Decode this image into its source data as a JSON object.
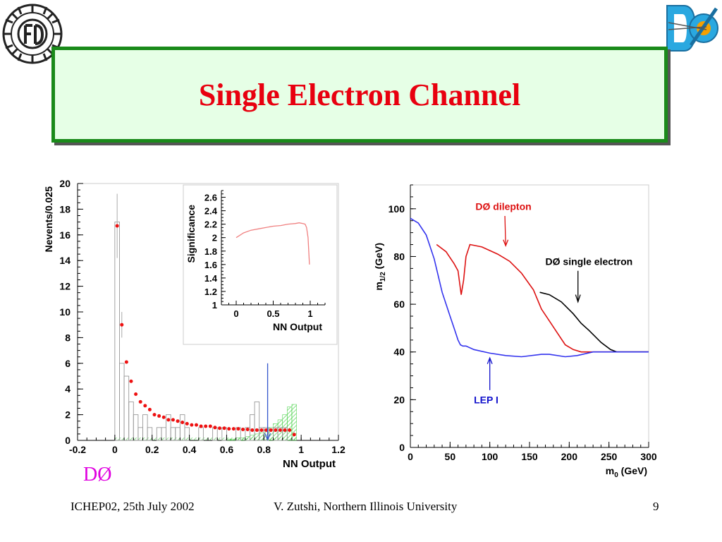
{
  "slide": {
    "title": "Single Electron Channel",
    "experiment_mark": "DØ",
    "footer_left": "ICHEP02, 25th July 2002",
    "footer_center": "V. Zutshi, Northern Illinois University",
    "page_number": "9",
    "colors": {
      "title": "#e8000f",
      "title_box_bg": "#e6ffe6",
      "title_box_border": "#1a8a1a",
      "d0_mark": "#e000e0"
    }
  },
  "chart_data": [
    {
      "type": "bar",
      "xlabel": "NN Output",
      "ylabel": "Nevents/0.025",
      "xlim": [
        -0.2,
        1.2
      ],
      "ylim": [
        0,
        20
      ],
      "xticks": [
        "-0.2",
        "0",
        "0.2",
        "0.4",
        "0.6",
        "0.8",
        "1",
        "1.2"
      ],
      "yticks": [
        "0",
        "2",
        "4",
        "6",
        "8",
        "10",
        "12",
        "14",
        "16",
        "18",
        "20"
      ],
      "grid": false,
      "cut_value": 0.82,
      "series": [
        {
          "kind": "data-hist",
          "color": "#999999",
          "x": [
            0.0125,
            0.0375,
            0.0625,
            0.0875,
            0.1125,
            0.1375,
            0.1625,
            0.1875,
            0.2125,
            0.2375,
            0.2625,
            0.2875,
            0.3125,
            0.3375,
            0.3625,
            0.3875,
            0.4125,
            0.4375,
            0.4625,
            0.4875,
            0.5125,
            0.5375,
            0.5625,
            0.5875,
            0.6125,
            0.6375,
            0.6625,
            0.6875,
            0.7125,
            0.7375,
            0.7625,
            0.7875,
            0.8125,
            0.8375,
            0.8625,
            0.8875,
            0.9125,
            0.9375,
            0.9625
          ],
          "values": [
            17,
            6,
            5,
            3,
            2,
            1,
            2,
            1,
            0,
            1,
            1,
            2,
            1,
            1,
            2,
            1,
            0,
            0,
            1,
            0,
            0,
            1,
            0,
            1,
            0,
            0,
            1,
            0,
            1,
            2,
            3,
            1,
            1,
            0,
            1,
            1,
            1,
            0,
            0
          ]
        },
        {
          "kind": "signal-hist",
          "color": "#33cc33",
          "x": [
            0.6125,
            0.6375,
            0.6625,
            0.6875,
            0.7125,
            0.7375,
            0.7625,
            0.7875,
            0.8125,
            0.8375,
            0.8625,
            0.8875,
            0.9125,
            0.9375,
            0.9625
          ],
          "values": [
            0.1,
            0.1,
            0.2,
            0.2,
            0.3,
            0.4,
            0.5,
            0.6,
            0.8,
            1.0,
            1.3,
            1.6,
            2.0,
            2.6,
            2.8
          ]
        },
        {
          "kind": "background-points",
          "color": "#ee1111",
          "x": [
            0.0125,
            0.0375,
            0.0625,
            0.0875,
            0.1125,
            0.1375,
            0.1625,
            0.1875,
            0.2125,
            0.2375,
            0.2625,
            0.2875,
            0.3125,
            0.3375,
            0.3625,
            0.3875,
            0.4125,
            0.4375,
            0.4625,
            0.4875,
            0.5125,
            0.5375,
            0.5625,
            0.5875,
            0.6125,
            0.6375,
            0.6625,
            0.6875,
            0.7125,
            0.7375,
            0.7625,
            0.7875,
            0.8125,
            0.8375,
            0.8625,
            0.8875,
            0.9125,
            0.9375,
            0.9625
          ],
          "values": [
            16.7,
            9.0,
            6.1,
            4.6,
            3.6,
            3.0,
            2.7,
            2.4,
            2.0,
            1.9,
            1.8,
            1.6,
            1.6,
            1.5,
            1.4,
            1.3,
            1.2,
            1.2,
            1.1,
            1.1,
            1.1,
            1.0,
            0.95,
            0.95,
            0.9,
            0.9,
            0.9,
            0.85,
            0.85,
            0.8,
            0.8,
            0.8,
            0.8,
            0.8,
            0.8,
            0.8,
            0.8,
            0.8,
            0.45
          ]
        }
      ],
      "inset": {
        "type": "line",
        "xlabel": "NN Output",
        "ylabel": "Significance",
        "xlim": [
          -0.2,
          1.2
        ],
        "ylim": [
          1,
          2.7
        ],
        "xticks": [
          "0",
          "0.5",
          "1"
        ],
        "yticks": [
          "1",
          "1.2",
          "1.4",
          "1.6",
          "1.8",
          "2",
          "2.2",
          "2.4",
          "2.6"
        ],
        "color": "#f08080",
        "x": [
          0.0,
          0.1,
          0.2,
          0.3,
          0.4,
          0.5,
          0.6,
          0.7,
          0.8,
          0.85,
          0.9,
          0.93,
          0.95,
          0.97,
          0.98,
          0.99
        ],
        "y": [
          2.0,
          2.07,
          2.11,
          2.13,
          2.15,
          2.17,
          2.18,
          2.2,
          2.21,
          2.22,
          2.21,
          2.2,
          2.15,
          2.0,
          1.8,
          1.6
        ]
      }
    },
    {
      "type": "line",
      "xlabel": "m0 (GeV)",
      "ylabel": "m1/2 (GeV)",
      "xlim": [
        0,
        300
      ],
      "ylim": [
        0,
        110
      ],
      "xticks": [
        "0",
        "50",
        "100",
        "150",
        "200",
        "250",
        "300"
      ],
      "yticks": [
        "0",
        "20",
        "40",
        "60",
        "80",
        "100"
      ],
      "grid": false,
      "annotations": [
        {
          "text": "DØ dilepton",
          "color": "#dd1111"
        },
        {
          "text": "DØ single electron",
          "color": "#000000"
        },
        {
          "text": "LEP I",
          "color": "#1111cc"
        }
      ],
      "series": [
        {
          "name": "DØ dilepton",
          "color": "#dd1111",
          "x": [
            33,
            45,
            55,
            60,
            64,
            67,
            70,
            75,
            90,
            110,
            125,
            140,
            155,
            165,
            175,
            185,
            195,
            205,
            215,
            225,
            235,
            250,
            275,
            300
          ],
          "y": [
            85,
            82,
            77,
            74,
            64,
            70,
            80,
            85,
            84,
            81,
            78,
            73,
            66,
            58,
            53,
            48,
            43,
            41,
            40,
            40,
            40,
            40,
            40,
            40
          ]
        },
        {
          "name": "DØ single electron",
          "color": "#000000",
          "x": [
            163,
            175,
            190,
            205,
            215,
            225,
            240,
            252,
            260,
            300
          ],
          "y": [
            65,
            64,
            61,
            56,
            52,
            49,
            44,
            41,
            40,
            40
          ]
        },
        {
          "name": "LEP I",
          "color": "#3333ee",
          "x": [
            0,
            10,
            20,
            30,
            40,
            50,
            55,
            60,
            63,
            66,
            70,
            80,
            100,
            120,
            140,
            165,
            175,
            195,
            210,
            230,
            260,
            300
          ],
          "y": [
            96,
            94,
            89,
            79,
            65,
            55,
            50,
            45,
            43,
            42.5,
            42.5,
            41,
            39.5,
            38.5,
            38,
            39,
            39,
            38,
            38.5,
            40,
            40,
            40
          ]
        }
      ]
    }
  ]
}
